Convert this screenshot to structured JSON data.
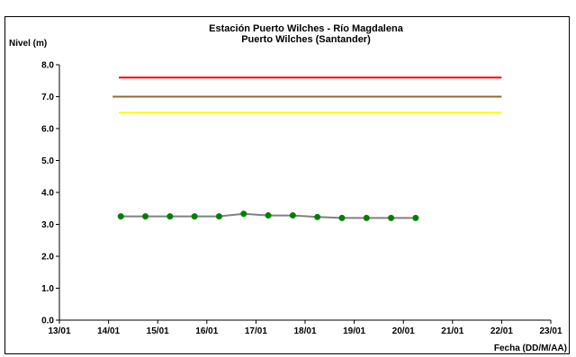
{
  "chart_data": {
    "type": "line",
    "title": "Estación Puerto Wilches - Río Magdalena",
    "subtitle": "Puerto Wilches (Santander)",
    "ylabel": "Nivel (m)",
    "xlabel": "Fecha (DD/M/AA)",
    "ylim": [
      0,
      8
    ],
    "yticks": [
      "0.0",
      "1.0",
      "2.0",
      "3.0",
      "4.0",
      "5.0",
      "6.0",
      "7.0",
      "8.0"
    ],
    "xlim": [
      "13/01",
      "23/01"
    ],
    "xticks": [
      "13/01",
      "14/01",
      "15/01",
      "16/01",
      "17/01",
      "18/01",
      "19/01",
      "20/01",
      "21/01",
      "22/01",
      "23/01"
    ],
    "grid": false,
    "legend": "none",
    "thresholds": [
      {
        "value": 7.6,
        "color": "#ff0000",
        "x_start": "14/01 05:00",
        "x_end": "22/01"
      },
      {
        "value": 7.0,
        "color": "#996633",
        "x_start": "14/01 02:00",
        "x_end": "22/01"
      },
      {
        "value": 6.5,
        "color": "#ffff00",
        "x_start": "14/01 05:00",
        "x_end": "22/01"
      }
    ],
    "series": [
      {
        "color": "#808080",
        "marker_color": "#008000",
        "points": [
          {
            "x": "14/01 06:00",
            "y": 3.25
          },
          {
            "x": "14/01 18:00",
            "y": 3.25
          },
          {
            "x": "15/01 06:00",
            "y": 3.25
          },
          {
            "x": "15/01 18:00",
            "y": 3.25
          },
          {
            "x": "16/01 06:00",
            "y": 3.25
          },
          {
            "x": "16/01 18:00",
            "y": 3.33
          },
          {
            "x": "17/01 06:00",
            "y": 3.28
          },
          {
            "x": "17/01 18:00",
            "y": 3.28
          },
          {
            "x": "18/01 06:00",
            "y": 3.23
          },
          {
            "x": "18/01 18:00",
            "y": 3.2
          },
          {
            "x": "19/01 06:00",
            "y": 3.2
          },
          {
            "x": "19/01 18:00",
            "y": 3.2
          },
          {
            "x": "20/01 06:00",
            "y": 3.2
          }
        ]
      }
    ]
  }
}
